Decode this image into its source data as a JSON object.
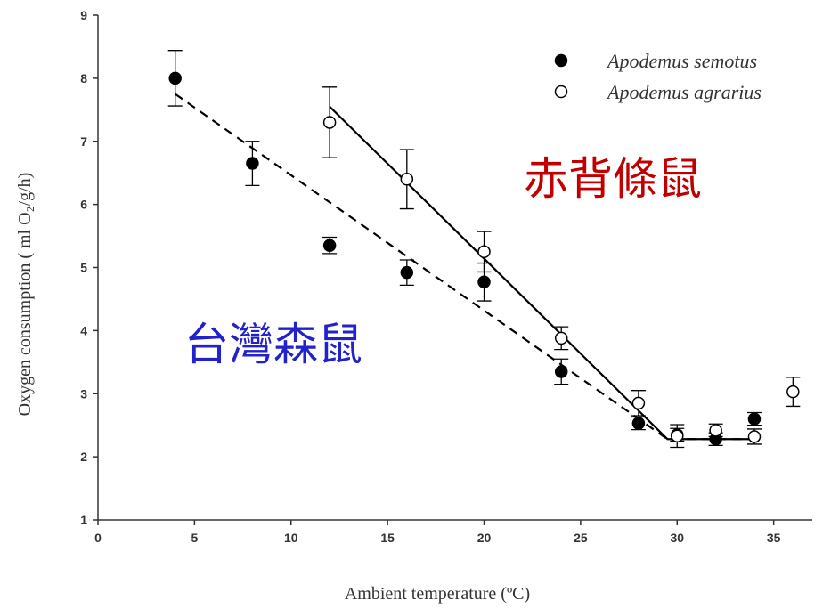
{
  "chart_data": {
    "type": "scatter",
    "xlabel": "Ambient temperature (ºC)",
    "ylabel": "Oxygen consumption ( ml O₂/g/h)",
    "xlim": [
      0,
      37
    ],
    "ylim": [
      1,
      9
    ],
    "xticks": [
      0,
      5,
      10,
      15,
      20,
      25,
      30,
      35
    ],
    "yticks": [
      1,
      2,
      3,
      4,
      5,
      6,
      7,
      8,
      9
    ],
    "grid": false,
    "legend_position": "top-right",
    "series": [
      {
        "name": "Apodemus semotus",
        "marker": "filled-circle",
        "color": "#000000",
        "points": [
          {
            "x": 4,
            "y": 8.0,
            "err": 0.44
          },
          {
            "x": 8,
            "y": 6.65,
            "err": 0.35
          },
          {
            "x": 12,
            "y": 5.35,
            "err": 0.13
          },
          {
            "x": 16,
            "y": 4.92,
            "err": 0.2
          },
          {
            "x": 20,
            "y": 4.77,
            "err": 0.3
          },
          {
            "x": 24,
            "y": 3.35,
            "err": 0.2
          },
          {
            "x": 28,
            "y": 2.53,
            "err": 0.1
          },
          {
            "x": 30,
            "y": 2.35,
            "err": 0.1
          },
          {
            "x": 32,
            "y": 2.28,
            "err": 0.1
          },
          {
            "x": 34,
            "y": 2.6,
            "err": 0.1
          }
        ],
        "fit": {
          "style": "dashed",
          "x": [
            4,
            29.5,
            34
          ],
          "y": [
            7.75,
            2.28,
            2.28
          ]
        }
      },
      {
        "name": "Apodemus agrarius",
        "marker": "open-circle",
        "color": "#000000",
        "points": [
          {
            "x": 12,
            "y": 7.3,
            "err": 0.56
          },
          {
            "x": 16,
            "y": 6.4,
            "err": 0.47
          },
          {
            "x": 20,
            "y": 5.25,
            "err": 0.32
          },
          {
            "x": 24,
            "y": 3.88,
            "err": 0.18
          },
          {
            "x": 28,
            "y": 2.85,
            "err": 0.2
          },
          {
            "x": 30,
            "y": 2.33,
            "err": 0.18
          },
          {
            "x": 32,
            "y": 2.42,
            "err": 0.1
          },
          {
            "x": 34,
            "y": 2.32,
            "err": 0.12
          },
          {
            "x": 36,
            "y": 3.03,
            "err": 0.23
          }
        ],
        "fit": {
          "style": "solid",
          "x": [
            12,
            29.5,
            34
          ],
          "y": [
            7.55,
            2.28,
            2.28
          ]
        }
      }
    ],
    "annotations": [
      {
        "text": "赤背條鼠",
        "color": "#c00000"
      },
      {
        "text": "台灣森鼠",
        "color": "#2222cc"
      }
    ]
  }
}
